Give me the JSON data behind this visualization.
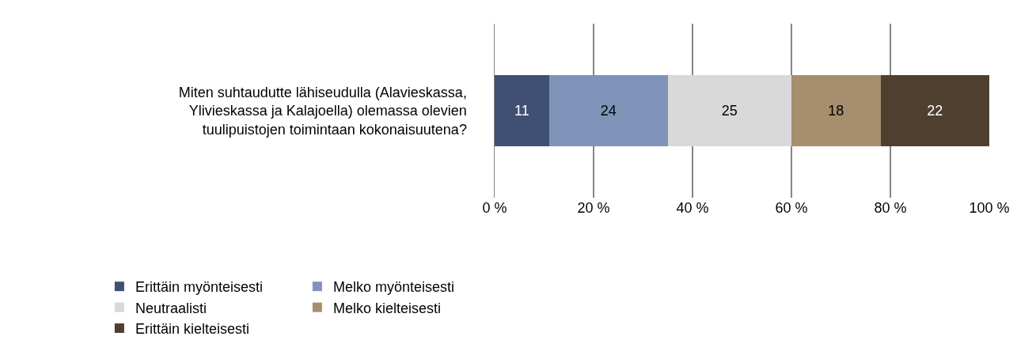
{
  "chart_data": {
    "type": "bar",
    "orientation": "horizontal",
    "stacked": true,
    "data_labels": true,
    "categories": [
      "Miten suhtaudutte lähiseudulla (Alavieskassa, Ylivieskassa ja Kalajoella) olemassa olevien tuulipuistojen toimintaan kokonaisuutena?"
    ],
    "series": [
      {
        "name": "Erittäin myönteisesti",
        "color": "#3f5073",
        "values": [
          11
        ]
      },
      {
        "name": "Melko myönteisesti",
        "color": "#8093b8",
        "values": [
          24
        ]
      },
      {
        "name": "Neutraalisti",
        "color": "#d9d9d9",
        "values": [
          25
        ]
      },
      {
        "name": "Melko kielteisesti",
        "color": "#a68e6f",
        "values": [
          18
        ]
      },
      {
        "name": "Erittäin kielteisesti",
        "color": "#4f3f2e",
        "values": [
          22
        ]
      }
    ],
    "xlim": [
      0,
      100
    ],
    "xticks": [
      {
        "value": 0,
        "label": "0 %"
      },
      {
        "value": 20,
        "label": "20 %"
      },
      {
        "value": 40,
        "label": "40 %"
      },
      {
        "value": 60,
        "label": "60 %"
      },
      {
        "value": 80,
        "label": "80 %"
      },
      {
        "value": 100,
        "label": "100 %"
      }
    ],
    "grid": "x",
    "legend": "bottom"
  }
}
